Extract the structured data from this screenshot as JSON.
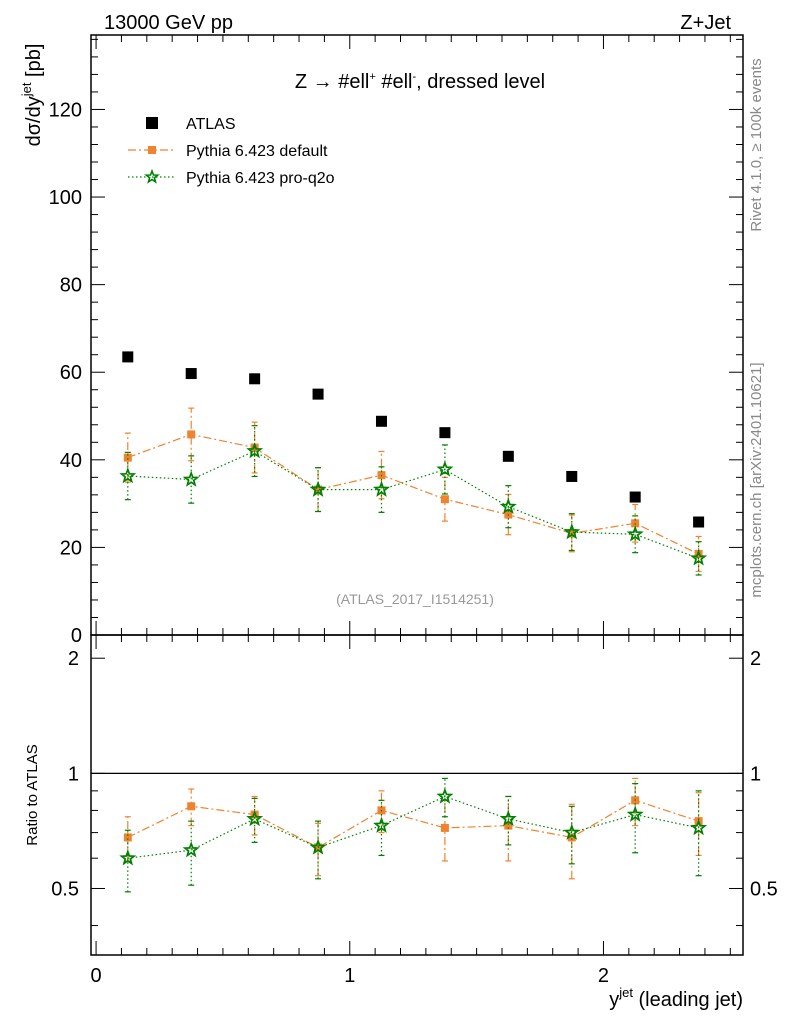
{
  "header": {
    "left": "13000 GeV pp",
    "right": "Z+Jet"
  },
  "side_labels": {
    "rivet": "Rivet 4.1.0, ≥ 100k events",
    "mcplots": "mcplots.cern.ch [arXiv:2401.10621]"
  },
  "chart_data": {
    "type": "scatter",
    "title": "Z → #ell⁺ #ell⁻, dressed level",
    "title_parts": {
      "z": "Z",
      "arrow": "→",
      "ell1": "#ell",
      "sup1": "+",
      "ell2": "#ell",
      "sup2": "-",
      "rest": ", dressed level"
    },
    "watermark": "(ATLAS_2017_I1514251)",
    "xlabel": "y",
    "xlabel_sup": "jet",
    "xlabel_rest": " (leading jet)",
    "ylabel": "dσ/dy",
    "ylabel_sup": "jet",
    "ylabel_unit": " [pb]",
    "ratio_ylabel": "Ratio to ATLAS",
    "xlim": [
      -0.02,
      2.55
    ],
    "ylim": [
      0,
      137
    ],
    "ratio_ylim": [
      0.335,
      2.3
    ],
    "x_ticks": [
      "0",
      "1",
      "2"
    ],
    "y_ticks": [
      "20",
      "40",
      "60",
      "80",
      "100",
      "120"
    ],
    "y_zero_label": "0",
    "ratio_ticks": [
      "0.5",
      "1",
      "2"
    ],
    "legend": [
      "ATLAS",
      "Pythia 6.423 default",
      "Pythia 6.423 pro-q2o"
    ],
    "x": [
      0.125,
      0.375,
      0.625,
      0.875,
      1.125,
      1.375,
      1.625,
      1.875,
      2.125,
      2.375
    ],
    "series": [
      {
        "name": "ATLAS",
        "color": "#000000",
        "marker": "square",
        "values": [
          63.5,
          59.7,
          58.5,
          55.0,
          48.8,
          46.2,
          40.8,
          36.2,
          31.5,
          25.8
        ]
      },
      {
        "name": "Pythia 6.423 default",
        "color": "#f0832f",
        "marker": "square",
        "line": "dashdot",
        "values": [
          40.5,
          45.8,
          42.8,
          33.2,
          36.5,
          31.0,
          27.5,
          23.2,
          25.5,
          18.5
        ],
        "errors": [
          5.6,
          6.0,
          5.8,
          5.0,
          5.4,
          5.0,
          4.6,
          4.2,
          4.3,
          4.0
        ],
        "ratio": [
          0.68,
          0.82,
          0.78,
          0.64,
          0.8,
          0.72,
          0.73,
          0.68,
          0.85,
          0.75
        ],
        "ratio_errors": [
          0.09,
          0.09,
          0.09,
          0.1,
          0.1,
          0.13,
          0.14,
          0.15,
          0.12,
          0.14
        ]
      },
      {
        "name": "Pythia 6.423 pro-q2o",
        "color": "#008000",
        "marker": "star",
        "line": "dotted",
        "values": [
          36.3,
          35.5,
          42.0,
          33.2,
          33.2,
          37.8,
          29.3,
          23.5,
          23.0,
          17.5
        ],
        "errors": [
          5.4,
          5.4,
          5.8,
          5.0,
          5.2,
          5.6,
          4.8,
          4.2,
          4.2,
          3.8
        ],
        "ratio": [
          0.6,
          0.63,
          0.76,
          0.64,
          0.73,
          0.87,
          0.76,
          0.7,
          0.78,
          0.72
        ],
        "ratio_errors": [
          0.11,
          0.12,
          0.1,
          0.11,
          0.12,
          0.1,
          0.11,
          0.12,
          0.16,
          0.18
        ]
      }
    ]
  }
}
